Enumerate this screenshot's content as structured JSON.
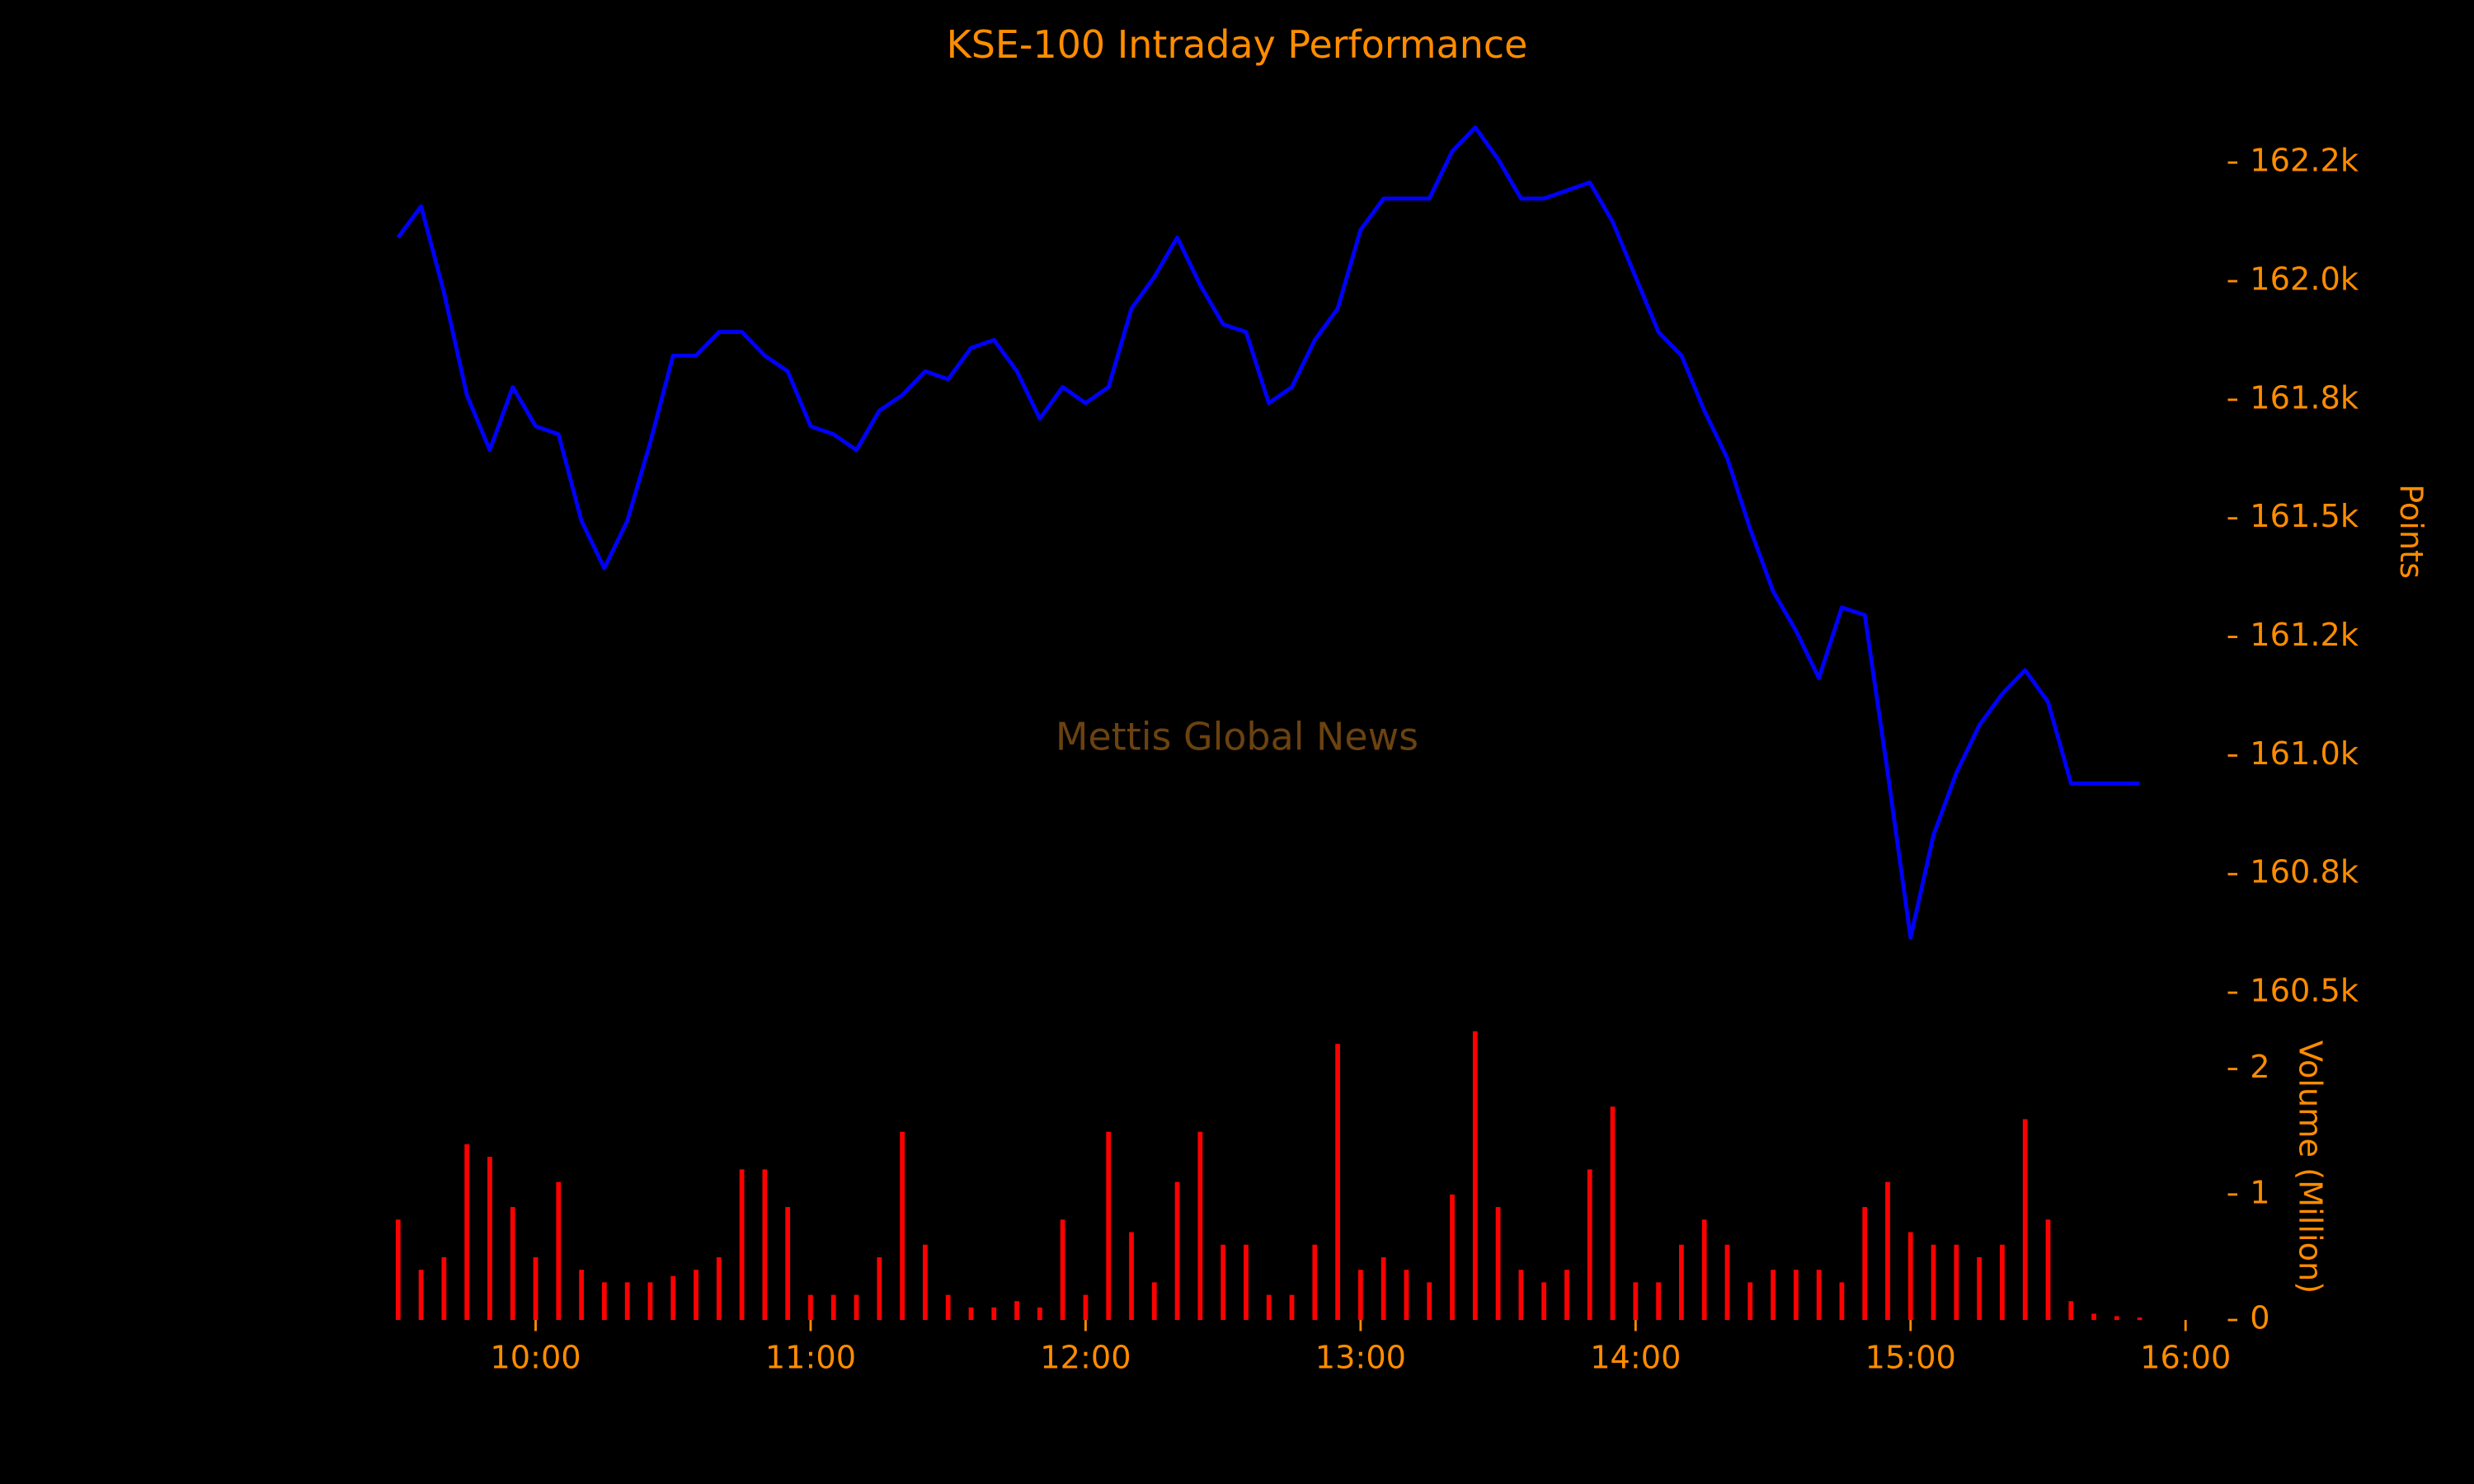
{
  "chart_data": [
    {
      "type": "line",
      "title": "KSE-100 Intraday Performance",
      "ylabel": "Points",
      "annotation": "Mettis Global News",
      "color": "#0000ff",
      "x": [
        "09:30",
        "09:35",
        "09:40",
        "09:45",
        "09:50",
        "09:55",
        "10:00",
        "10:05",
        "10:10",
        "10:15",
        "10:20",
        "10:25",
        "10:30",
        "10:35",
        "10:40",
        "10:45",
        "10:50",
        "10:55",
        "11:00",
        "11:05",
        "11:10",
        "11:15",
        "11:20",
        "11:25",
        "11:30",
        "11:35",
        "11:40",
        "11:45",
        "11:50",
        "11:55",
        "12:00",
        "12:05",
        "12:10",
        "12:15",
        "12:20",
        "12:25",
        "12:30",
        "12:35",
        "12:40",
        "12:45",
        "12:50",
        "12:55",
        "13:00",
        "13:05",
        "13:10",
        "13:15",
        "13:20",
        "13:25",
        "13:30",
        "13:35",
        "13:40",
        "13:45",
        "13:50",
        "13:55",
        "14:00",
        "14:05",
        "14:10",
        "14:15",
        "14:20",
        "14:25",
        "14:30",
        "14:35",
        "14:40",
        "14:45",
        "14:50",
        "14:55",
        "15:00",
        "15:05",
        "15:10",
        "15:15",
        "15:20",
        "15:25",
        "15:30",
        "15:35",
        "15:40",
        "15:45",
        "15:50"
      ],
      "values": [
        162092,
        162158,
        161976,
        161760,
        161644,
        161777,
        161694,
        161677,
        161495,
        161395,
        161495,
        161660,
        161843,
        161843,
        161893,
        161893,
        161843,
        161810,
        161694,
        161677,
        161644,
        161727,
        161760,
        161810,
        161793,
        161859,
        161876,
        161810,
        161710,
        161777,
        161743,
        161777,
        161942,
        162009,
        162092,
        161992,
        161909,
        161893,
        161743,
        161777,
        161876,
        161942,
        162108,
        162174,
        162174,
        162174,
        162274,
        162324,
        162257,
        162174,
        162174,
        162191,
        162208,
        162125,
        162009,
        161893,
        161843,
        161727,
        161627,
        161478,
        161346,
        161263,
        161163,
        161312,
        161296,
        160964,
        160616,
        160832,
        160964,
        161064,
        161130,
        161180,
        161113,
        160941,
        160941,
        160941,
        160941
      ],
      "xlim": [
        "09:23",
        "16:02"
      ],
      "ylim": [
        160465,
        162360
      ],
      "yticks": [
        {
          "value": 160500,
          "label": "160.5k"
        },
        {
          "value": 160750,
          "label": "160.8k"
        },
        {
          "value": 161000,
          "label": "161.0k"
        },
        {
          "value": 161250,
          "label": "161.2k"
        },
        {
          "value": 161500,
          "label": "161.5k"
        },
        {
          "value": 161750,
          "label": "161.8k"
        },
        {
          "value": 162000,
          "label": "162.0k"
        },
        {
          "value": 162250,
          "label": "162.2k"
        }
      ]
    },
    {
      "type": "bar",
      "ylabel": "Volume (Million)",
      "color": "#ff0000",
      "x": [
        "09:30",
        "09:35",
        "09:40",
        "09:45",
        "09:50",
        "09:55",
        "10:00",
        "10:05",
        "10:10",
        "10:15",
        "10:20",
        "10:25",
        "10:30",
        "10:35",
        "10:40",
        "10:45",
        "10:50",
        "10:55",
        "11:00",
        "11:05",
        "11:10",
        "11:15",
        "11:20",
        "11:25",
        "11:30",
        "11:35",
        "11:40",
        "11:45",
        "11:50",
        "11:55",
        "12:00",
        "12:05",
        "12:10",
        "12:15",
        "12:20",
        "12:25",
        "12:30",
        "12:35",
        "12:40",
        "12:45",
        "12:50",
        "12:55",
        "13:00",
        "13:05",
        "13:10",
        "13:15",
        "13:20",
        "13:25",
        "13:30",
        "13:35",
        "13:40",
        "13:45",
        "13:50",
        "13:55",
        "14:00",
        "14:05",
        "14:10",
        "14:15",
        "14:20",
        "14:25",
        "14:30",
        "14:35",
        "14:40",
        "14:45",
        "14:50",
        "14:55",
        "15:00",
        "15:05",
        "15:10",
        "15:15",
        "15:20",
        "15:25",
        "15:30",
        "15:35",
        "15:40",
        "15:45",
        "15:50"
      ],
      "values": [
        0.8,
        0.4,
        0.5,
        1.4,
        1.3,
        0.9,
        0.5,
        1.1,
        0.4,
        0.3,
        0.3,
        0.3,
        0.35,
        0.4,
        0.5,
        1.2,
        1.2,
        0.9,
        0.2,
        0.2,
        0.2,
        0.5,
        1.5,
        0.6,
        0.2,
        0.1,
        0.1,
        0.15,
        0.1,
        0.8,
        0.2,
        1.5,
        0.7,
        0.3,
        1.1,
        1.5,
        0.6,
        0.6,
        0.2,
        0.2,
        0.6,
        2.2,
        0.4,
        0.5,
        0.4,
        0.3,
        1.0,
        2.3,
        0.9,
        0.4,
        0.3,
        0.4,
        1.2,
        1.7,
        0.3,
        0.3,
        0.6,
        0.8,
        0.6,
        0.3,
        0.4,
        0.4,
        0.4,
        0.3,
        0.9,
        1.1,
        0.7,
        0.6,
        0.6,
        0.5,
        0.6,
        1.6,
        0.8,
        0.15,
        0.05,
        0.03,
        0.02
      ],
      "xlim": [
        "09:23",
        "16:02"
      ],
      "ylim": [
        0,
        2.35
      ],
      "yticks": [
        0,
        1,
        2
      ],
      "xticks": [
        "10:00",
        "11:00",
        "12:00",
        "13:00",
        "14:00",
        "15:00",
        "16:00"
      ]
    }
  ]
}
